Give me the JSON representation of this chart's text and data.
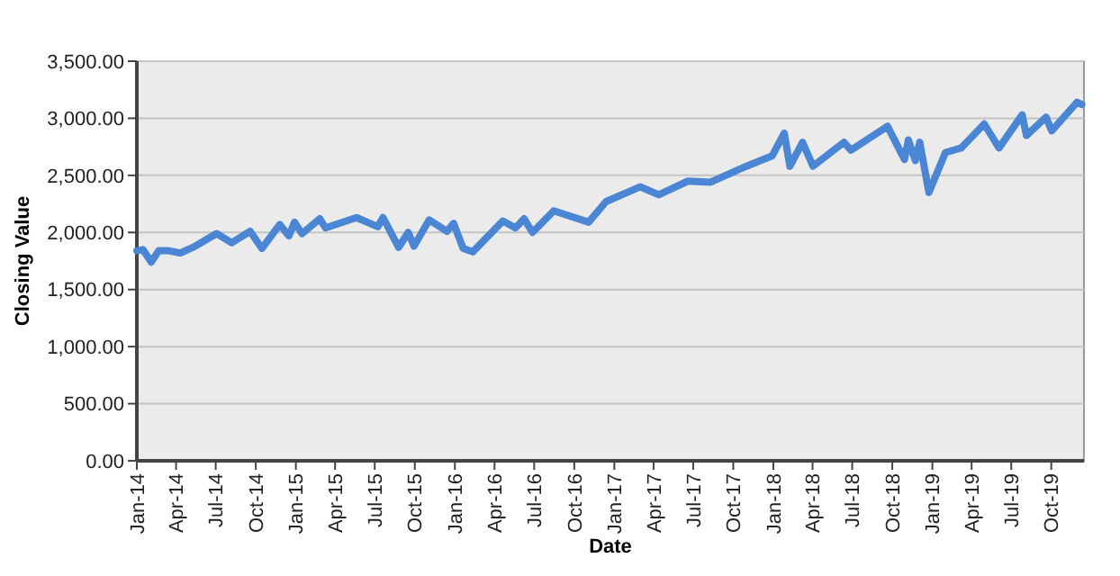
{
  "chart_data": {
    "type": "line",
    "xlabel": "Date",
    "ylabel": "Closing Value",
    "x": [
      "2014-01-01",
      "2014-01-15",
      "2014-02-03",
      "2014-02-20",
      "2014-03-15",
      "2014-04-11",
      "2014-05-15",
      "2014-07-03",
      "2014-08-07",
      "2014-09-18",
      "2014-10-15",
      "2014-11-25",
      "2014-12-16",
      "2014-12-29",
      "2015-01-15",
      "2015-02-25",
      "2015-03-10",
      "2015-05-20",
      "2015-07-08",
      "2015-07-20",
      "2015-08-25",
      "2015-09-16",
      "2015-09-29",
      "2015-11-03",
      "2015-12-14",
      "2015-12-29",
      "2016-01-20",
      "2016-02-11",
      "2016-04-20",
      "2016-05-19",
      "2016-06-08",
      "2016-06-27",
      "2016-08-15",
      "2016-11-03",
      "2016-12-13",
      "2017-03-01",
      "2017-04-13",
      "2017-06-19",
      "2017-08-10",
      "2017-10-31",
      "2017-12-29",
      "2018-01-26",
      "2018-02-08",
      "2018-03-09",
      "2018-04-02",
      "2018-06-12",
      "2018-06-28",
      "2018-09-20",
      "2018-10-29",
      "2018-11-07",
      "2018-11-23",
      "2018-12-03",
      "2018-12-24",
      "2019-01-31",
      "2019-03-08",
      "2019-04-30",
      "2019-06-03",
      "2019-07-26",
      "2019-08-05",
      "2019-09-19",
      "2019-10-02",
      "2019-11-29",
      "2019-12-10"
    ],
    "series": [
      {
        "color": "#4a86d4",
        "values": [
          1840,
          1850,
          1740,
          1840,
          1840,
          1820,
          1880,
          1990,
          1910,
          2010,
          1860,
          2070,
          1970,
          2090,
          1990,
          2120,
          2040,
          2130,
          2050,
          2130,
          1870,
          2000,
          1880,
          2110,
          2010,
          2080,
          1860,
          1830,
          2100,
          2040,
          2120,
          2000,
          2190,
          2090,
          2270,
          2400,
          2330,
          2450,
          2440,
          2580,
          2670,
          2870,
          2580,
          2790,
          2580,
          2790,
          2720,
          2930,
          2640,
          2810,
          2630,
          2790,
          2350,
          2700,
          2740,
          2950,
          2740,
          3030,
          2850,
          3010,
          2890,
          3140,
          3120
        ]
      }
    ],
    "xlim": [
      "2014-01-01",
      "2019-12-15"
    ],
    "xticks": [
      {
        "value": "2014-01-01",
        "label": "Jan-14"
      },
      {
        "value": "2014-04-01",
        "label": "Apr-14"
      },
      {
        "value": "2014-07-01",
        "label": "Jul-14"
      },
      {
        "value": "2014-10-01",
        "label": "Oct-14"
      },
      {
        "value": "2015-01-01",
        "label": "Jan-15"
      },
      {
        "value": "2015-04-01",
        "label": "Apr-15"
      },
      {
        "value": "2015-07-01",
        "label": "Jul-15"
      },
      {
        "value": "2015-10-01",
        "label": "Oct-15"
      },
      {
        "value": "2016-01-01",
        "label": "Jan-16"
      },
      {
        "value": "2016-04-01",
        "label": "Apr-16"
      },
      {
        "value": "2016-07-01",
        "label": "Jul-16"
      },
      {
        "value": "2016-10-01",
        "label": "Oct-16"
      },
      {
        "value": "2017-01-01",
        "label": "Jan-17"
      },
      {
        "value": "2017-04-01",
        "label": "Apr-17"
      },
      {
        "value": "2017-07-01",
        "label": "Jul-17"
      },
      {
        "value": "2017-10-01",
        "label": "Oct-17"
      },
      {
        "value": "2018-01-01",
        "label": "Jan-18"
      },
      {
        "value": "2018-04-01",
        "label": "Apr-18"
      },
      {
        "value": "2018-07-01",
        "label": "Jul-18"
      },
      {
        "value": "2018-10-01",
        "label": "Oct-18"
      },
      {
        "value": "2019-01-01",
        "label": "Jan-19"
      },
      {
        "value": "2019-04-01",
        "label": "Apr-19"
      },
      {
        "value": "2019-07-01",
        "label": "Jul-19"
      },
      {
        "value": "2019-10-01",
        "label": "Oct-19"
      }
    ],
    "ylim": [
      0,
      3500
    ],
    "yticks": [
      {
        "value": 0,
        "label": "0.00"
      },
      {
        "value": 500,
        "label": "500.00"
      },
      {
        "value": 1000,
        "label": "1,000.00"
      },
      {
        "value": 1500,
        "label": "1,500.00"
      },
      {
        "value": 2000,
        "label": "2,000.00"
      },
      {
        "value": 2500,
        "label": "2,500.00"
      },
      {
        "value": 3000,
        "label": "3,000.00"
      },
      {
        "value": 3500,
        "label": "3,500.00"
      }
    ],
    "grid": "y",
    "marker": "none",
    "line_style": "solid"
  }
}
